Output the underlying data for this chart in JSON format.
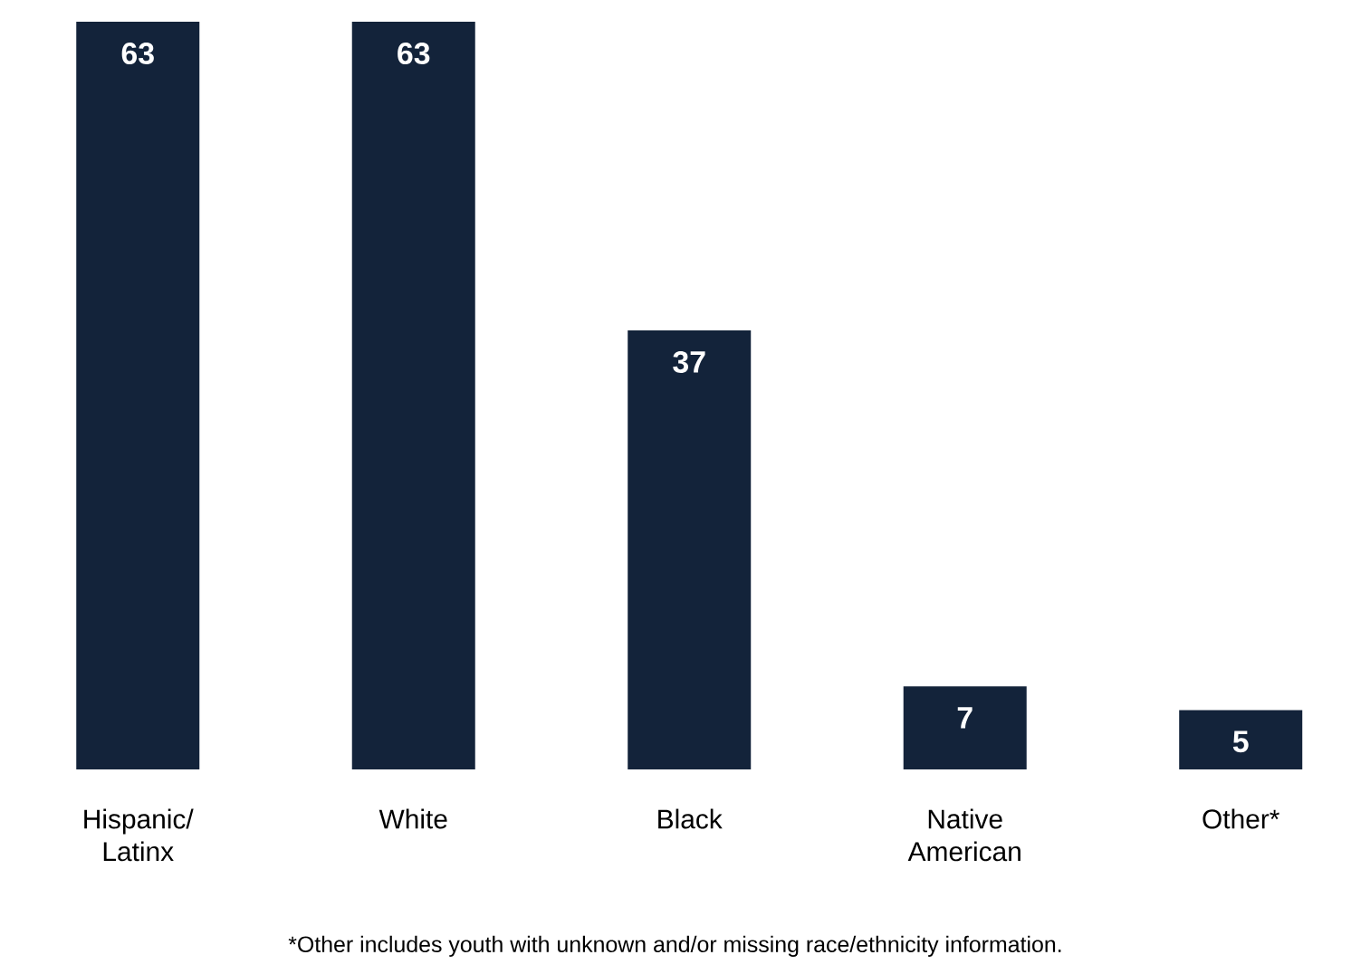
{
  "chart_data": {
    "type": "bar",
    "categories": [
      "Hispanic/ Latinx",
      "White",
      "Black",
      "Native American",
      "Other*"
    ],
    "values": [
      63,
      63,
      37,
      7,
      5
    ],
    "color": "#13233a",
    "data_labels": true,
    "annotations": [
      "*Other includes youth with unknown and/or missing race/ethnicity information."
    ]
  }
}
